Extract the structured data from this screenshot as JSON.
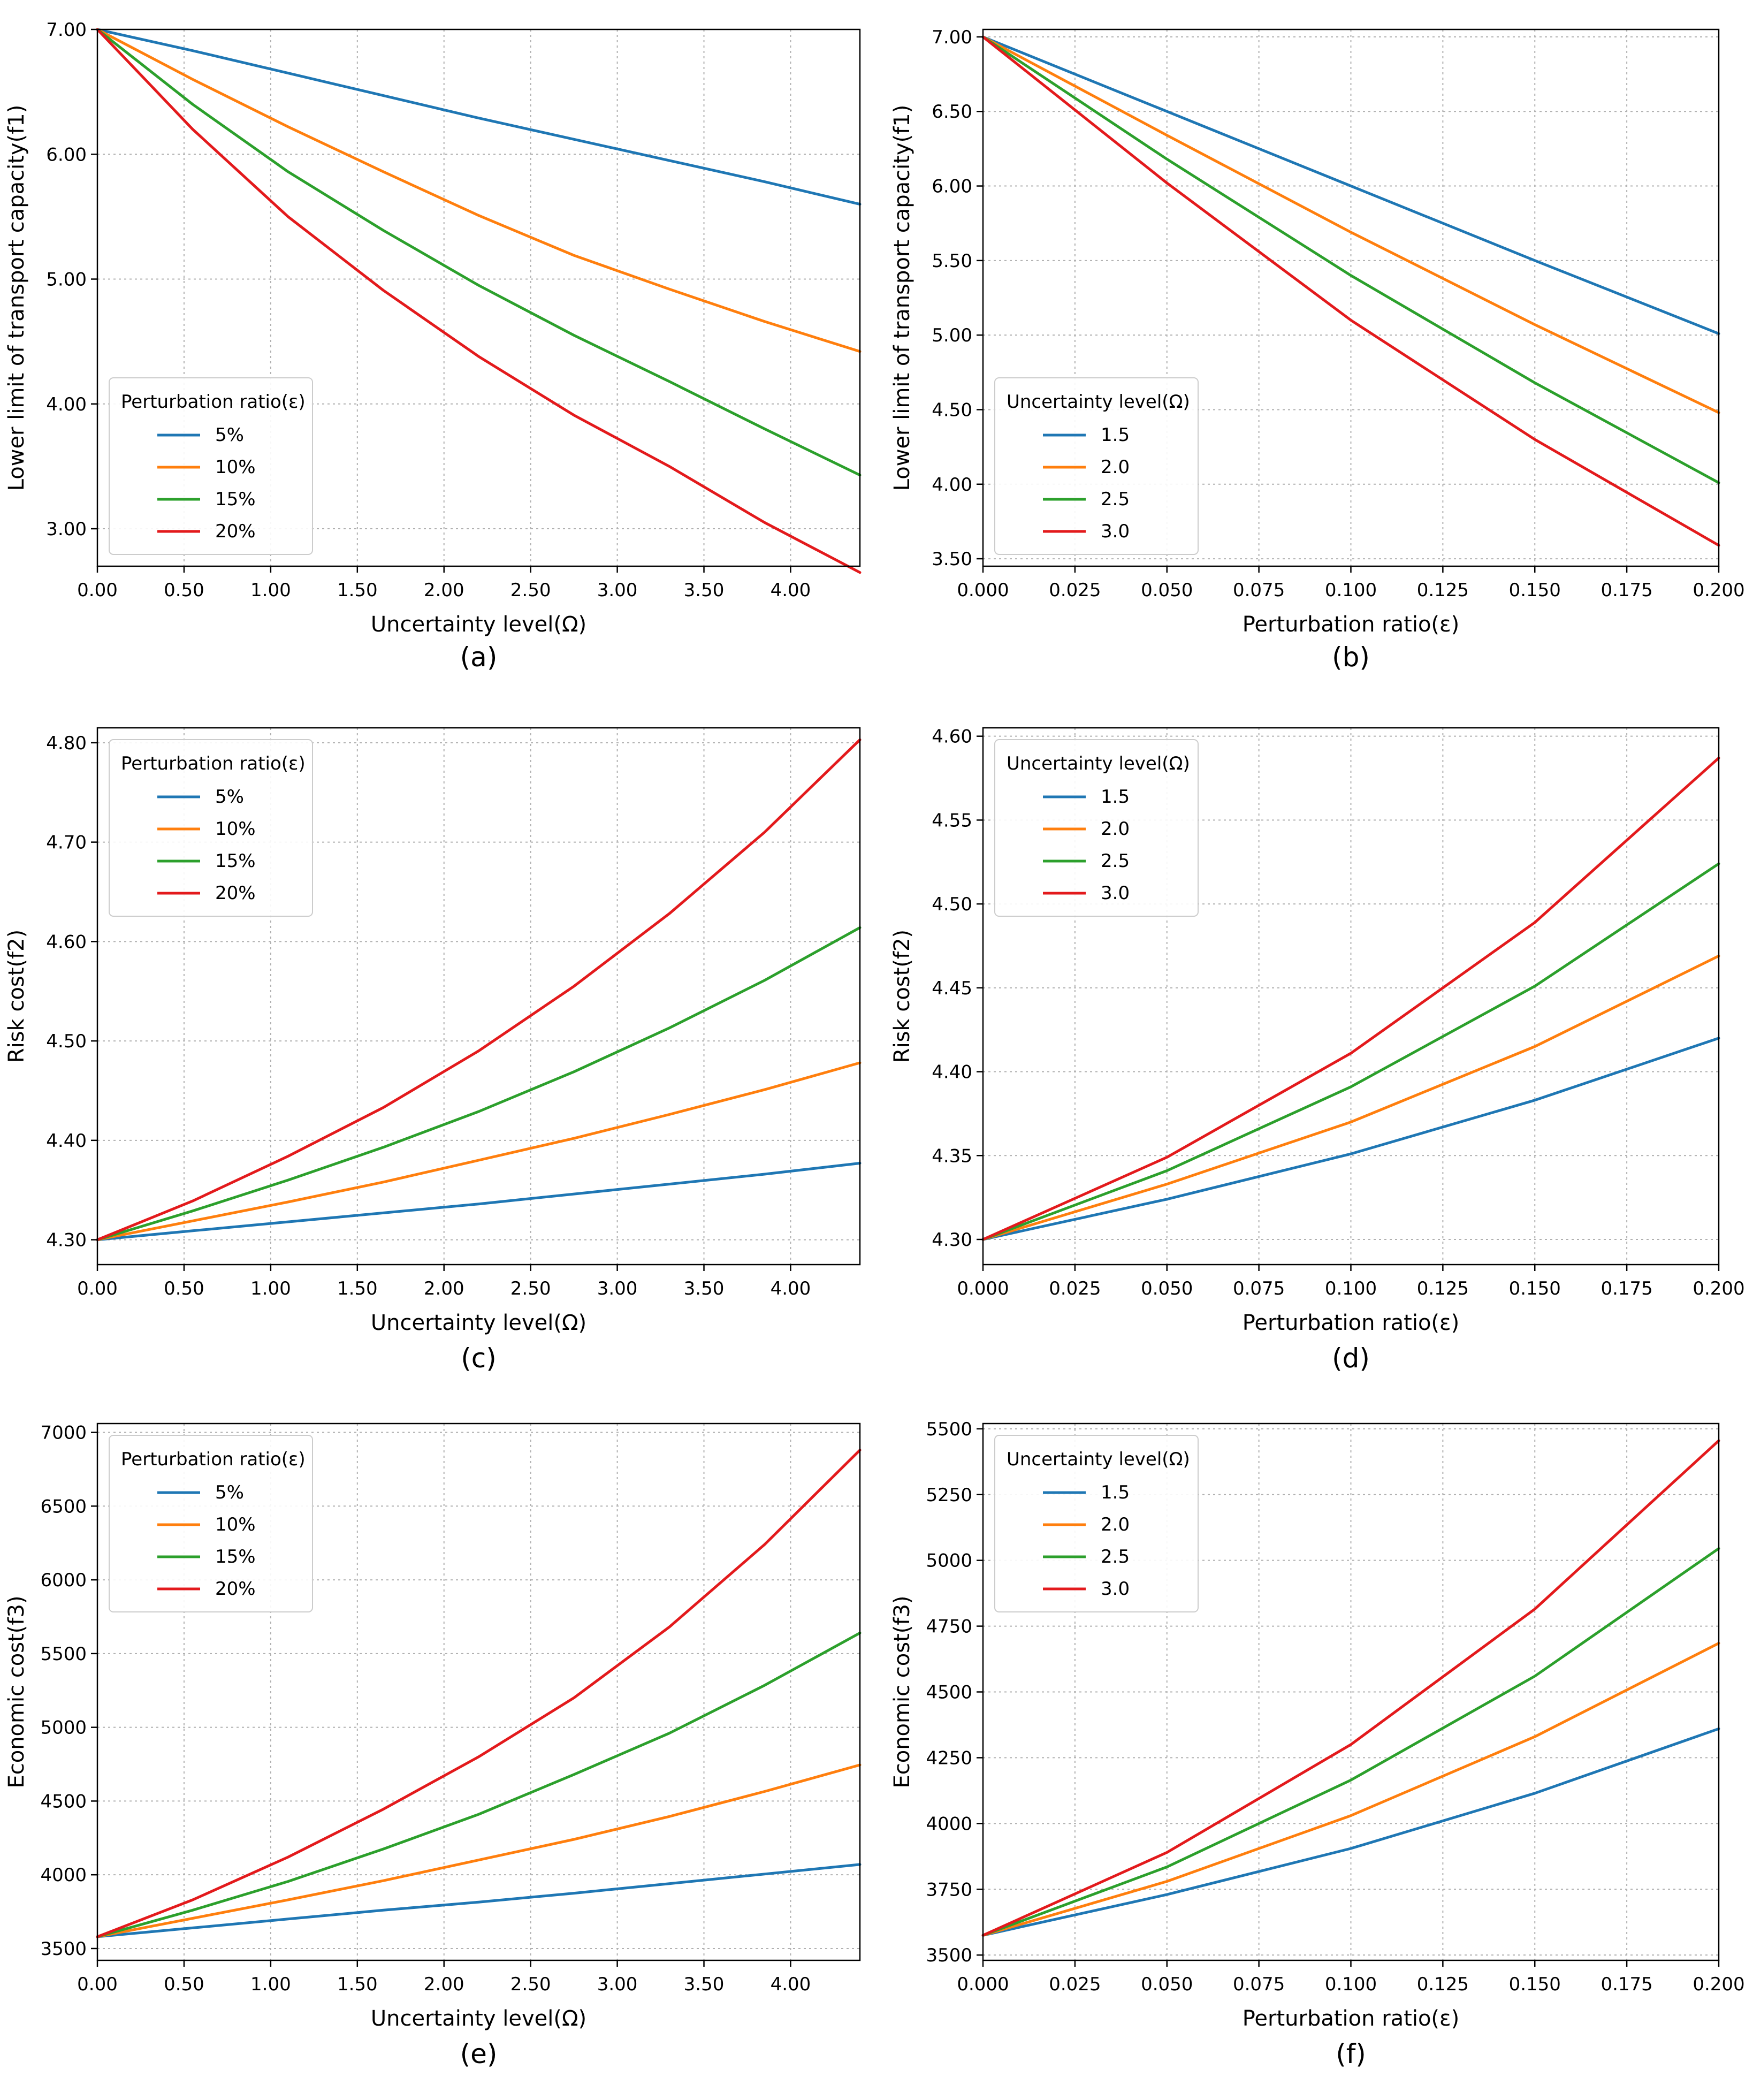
{
  "colors": {
    "blue": "#1f77b4",
    "orange": "#ff7f0e",
    "green": "#2ca02c",
    "red": "#e31a1c",
    "grid": "#b0b0b0",
    "axis": "#000000",
    "legend_border": "#cccccc"
  },
  "chart_data": [
    {
      "panel": "(a)",
      "type": "line",
      "xlabel": "Uncertainty level(Ω)",
      "ylabel": "Lower limit of transport capacity(f1)",
      "xlim": [
        0,
        4.4
      ],
      "ylim": [
        2.7,
        7.0
      ],
      "xticks": [
        0,
        0.5,
        1.0,
        1.5,
        2.0,
        2.5,
        3.0,
        3.5,
        4.0
      ],
      "xtick_labels": [
        "0.00",
        "0.50",
        "1.00",
        "1.50",
        "2.00",
        "2.50",
        "3.00",
        "3.50",
        "4.00"
      ],
      "yticks": [
        3.0,
        4.0,
        5.0,
        6.0,
        7.0
      ],
      "ytick_labels": [
        "3.00",
        "4.00",
        "5.00",
        "6.00",
        "7.00"
      ],
      "grid": true,
      "legend": {
        "title": "Perturbation ratio(ε)",
        "position": "lower-left"
      },
      "x": [
        0,
        0.55,
        1.1,
        1.65,
        2.2,
        2.75,
        3.3,
        3.85,
        4.4
      ],
      "series": [
        {
          "name": "5%",
          "color": "blue",
          "values": [
            7.0,
            6.83,
            6.65,
            6.47,
            6.29,
            6.12,
            5.95,
            5.78,
            5.6
          ]
        },
        {
          "name": "10%",
          "color": "orange",
          "values": [
            7.0,
            6.6,
            6.22,
            5.86,
            5.51,
            5.19,
            4.92,
            4.66,
            4.42
          ]
        },
        {
          "name": "15%",
          "color": "green",
          "values": [
            7.0,
            6.4,
            5.86,
            5.39,
            4.95,
            4.55,
            4.18,
            3.8,
            3.43
          ]
        },
        {
          "name": "20%",
          "color": "red",
          "values": [
            7.0,
            6.2,
            5.5,
            4.91,
            4.38,
            3.91,
            3.5,
            3.05,
            2.65
          ]
        }
      ]
    },
    {
      "panel": "(b)",
      "type": "line",
      "xlabel": "Perturbation ratio(ε)",
      "ylabel": "Lower limit of transport capacity(f1)",
      "xlim": [
        0,
        0.2
      ],
      "ylim": [
        3.45,
        7.05
      ],
      "xticks": [
        0,
        0.025,
        0.05,
        0.075,
        0.1,
        0.125,
        0.15,
        0.175,
        0.2
      ],
      "xtick_labels": [
        "0.000",
        "0.025",
        "0.050",
        "0.075",
        "0.100",
        "0.125",
        "0.150",
        "0.175",
        "0.200"
      ],
      "yticks": [
        3.5,
        4.0,
        4.5,
        5.0,
        5.5,
        6.0,
        6.5,
        7.0
      ],
      "ytick_labels": [
        "3.50",
        "4.00",
        "4.50",
        "5.00",
        "5.50",
        "6.00",
        "6.50",
        "7.00"
      ],
      "grid": true,
      "legend": {
        "title": "Uncertainty level(Ω)",
        "position": "lower-left"
      },
      "x": [
        0,
        0.05,
        0.1,
        0.15,
        0.2
      ],
      "series": [
        {
          "name": "1.5",
          "color": "blue",
          "values": [
            7.0,
            6.5,
            6.0,
            5.5,
            5.01
          ]
        },
        {
          "name": "2.0",
          "color": "orange",
          "values": [
            7.0,
            6.34,
            5.69,
            5.07,
            4.48
          ]
        },
        {
          "name": "2.5",
          "color": "green",
          "values": [
            7.0,
            6.18,
            5.4,
            4.68,
            4.01
          ]
        },
        {
          "name": "3.0",
          "color": "red",
          "values": [
            7.0,
            6.02,
            5.1,
            4.3,
            3.59
          ]
        }
      ]
    },
    {
      "panel": "(c)",
      "type": "line",
      "xlabel": "Uncertainty level(Ω)",
      "ylabel": "Risk cost(f2)",
      "xlim": [
        0,
        4.4
      ],
      "ylim": [
        4.275,
        4.815
      ],
      "xticks": [
        0,
        0.5,
        1.0,
        1.5,
        2.0,
        2.5,
        3.0,
        3.5,
        4.0
      ],
      "xtick_labels": [
        "0.00",
        "0.50",
        "1.00",
        "1.50",
        "2.00",
        "2.50",
        "3.00",
        "3.50",
        "4.00"
      ],
      "yticks": [
        4.3,
        4.4,
        4.5,
        4.6,
        4.7,
        4.8
      ],
      "ytick_labels": [
        "4.30",
        "4.40",
        "4.50",
        "4.60",
        "4.70",
        "4.80"
      ],
      "grid": true,
      "legend": {
        "title": "Perturbation ratio(ε)",
        "position": "upper-left"
      },
      "x": [
        0,
        0.55,
        1.1,
        1.65,
        2.2,
        2.75,
        3.3,
        3.85,
        4.4
      ],
      "series": [
        {
          "name": "5%",
          "color": "blue",
          "values": [
            4.3,
            4.309,
            4.318,
            4.327,
            4.336,
            4.346,
            4.356,
            4.366,
            4.377
          ]
        },
        {
          "name": "10%",
          "color": "orange",
          "values": [
            4.3,
            4.319,
            4.338,
            4.358,
            4.38,
            4.402,
            4.426,
            4.451,
            4.478
          ]
        },
        {
          "name": "15%",
          "color": "green",
          "values": [
            4.3,
            4.329,
            4.36,
            4.393,
            4.429,
            4.469,
            4.513,
            4.561,
            4.614
          ]
        },
        {
          "name": "20%",
          "color": "red",
          "values": [
            4.3,
            4.339,
            4.384,
            4.433,
            4.49,
            4.555,
            4.628,
            4.71,
            4.803
          ]
        }
      ]
    },
    {
      "panel": "(d)",
      "type": "line",
      "xlabel": "Perturbation ratio(ε)",
      "ylabel": "Risk cost(f2)",
      "xlim": [
        0,
        0.2
      ],
      "ylim": [
        4.285,
        4.605
      ],
      "xticks": [
        0,
        0.025,
        0.05,
        0.075,
        0.1,
        0.125,
        0.15,
        0.175,
        0.2
      ],
      "xtick_labels": [
        "0.000",
        "0.025",
        "0.050",
        "0.075",
        "0.100",
        "0.125",
        "0.150",
        "0.175",
        "0.200"
      ],
      "yticks": [
        4.3,
        4.35,
        4.4,
        4.45,
        4.5,
        4.55,
        4.6
      ],
      "ytick_labels": [
        "4.30",
        "4.35",
        "4.40",
        "4.45",
        "4.50",
        "4.55",
        "4.60"
      ],
      "grid": true,
      "legend": {
        "title": "Uncertainty level(Ω)",
        "position": "upper-left"
      },
      "x": [
        0,
        0.05,
        0.1,
        0.15,
        0.2
      ],
      "series": [
        {
          "name": "1.5",
          "color": "blue",
          "values": [
            4.3,
            4.324,
            4.351,
            4.383,
            4.42
          ]
        },
        {
          "name": "2.0",
          "color": "orange",
          "values": [
            4.3,
            4.333,
            4.37,
            4.415,
            4.469
          ]
        },
        {
          "name": "2.5",
          "color": "green",
          "values": [
            4.3,
            4.341,
            4.391,
            4.451,
            4.524
          ]
        },
        {
          "name": "3.0",
          "color": "red",
          "values": [
            4.3,
            4.349,
            4.411,
            4.489,
            4.587
          ]
        }
      ]
    },
    {
      "panel": "(e)",
      "type": "line",
      "xlabel": "Uncertainty level(Ω)",
      "ylabel": "Economic cost(f3)",
      "xlim": [
        0,
        4.4
      ],
      "ylim": [
        3420,
        7060
      ],
      "xticks": [
        0,
        0.5,
        1.0,
        1.5,
        2.0,
        2.5,
        3.0,
        3.5,
        4.0
      ],
      "xtick_labels": [
        "0.00",
        "0.50",
        "1.00",
        "1.50",
        "2.00",
        "2.50",
        "3.00",
        "3.50",
        "4.00"
      ],
      "yticks": [
        3500,
        4000,
        4500,
        5000,
        5500,
        6000,
        6500,
        7000
      ],
      "ytick_labels": [
        "3500",
        "4000",
        "4500",
        "5000",
        "5500",
        "6000",
        "6500",
        "7000"
      ],
      "grid": true,
      "legend": {
        "title": "Perturbation ratio(ε)",
        "position": "upper-left"
      },
      "x": [
        0,
        0.55,
        1.1,
        1.65,
        2.2,
        2.75,
        3.3,
        3.85,
        4.4
      ],
      "series": [
        {
          "name": "5%",
          "color": "blue",
          "values": [
            3580,
            3640,
            3700,
            3760,
            3815,
            3875,
            3940,
            4005,
            4070
          ]
        },
        {
          "name": "10%",
          "color": "orange",
          "values": [
            3580,
            3705,
            3830,
            3960,
            4100,
            4240,
            4395,
            4565,
            4745
          ]
        },
        {
          "name": "15%",
          "color": "green",
          "values": [
            3580,
            3760,
            3955,
            4175,
            4410,
            4680,
            4960,
            5285,
            5640
          ]
        },
        {
          "name": "20%",
          "color": "red",
          "values": [
            3580,
            3830,
            4120,
            4445,
            4800,
            5200,
            5680,
            6240,
            6880
          ]
        }
      ]
    },
    {
      "panel": "(f)",
      "type": "line",
      "xlabel": "Perturbation ratio(ε)",
      "ylabel": "Economic cost(f3)",
      "xlim": [
        0,
        0.2
      ],
      "ylim": [
        3480,
        5520
      ],
      "xticks": [
        0,
        0.025,
        0.05,
        0.075,
        0.1,
        0.125,
        0.15,
        0.175,
        0.2
      ],
      "xtick_labels": [
        "0.000",
        "0.025",
        "0.050",
        "0.075",
        "0.100",
        "0.125",
        "0.150",
        "0.175",
        "0.200"
      ],
      "yticks": [
        3500,
        3750,
        4000,
        4250,
        4500,
        4750,
        5000,
        5250,
        5500
      ],
      "ytick_labels": [
        "3500",
        "3750",
        "4000",
        "4250",
        "4500",
        "4750",
        "5000",
        "5250",
        "5500"
      ],
      "grid": true,
      "legend": {
        "title": "Uncertainty level(Ω)",
        "position": "upper-left"
      },
      "x": [
        0,
        0.05,
        0.1,
        0.15,
        0.2
      ],
      "series": [
        {
          "name": "1.5",
          "color": "blue",
          "values": [
            3575,
            3730,
            3905,
            4115,
            4360
          ]
        },
        {
          "name": "2.0",
          "color": "orange",
          "values": [
            3575,
            3780,
            4030,
            4330,
            4685
          ]
        },
        {
          "name": "2.5",
          "color": "green",
          "values": [
            3575,
            3835,
            4165,
            4560,
            5045
          ]
        },
        {
          "name": "3.0",
          "color": "red",
          "values": [
            3575,
            3890,
            4300,
            4815,
            5455
          ]
        }
      ]
    }
  ]
}
